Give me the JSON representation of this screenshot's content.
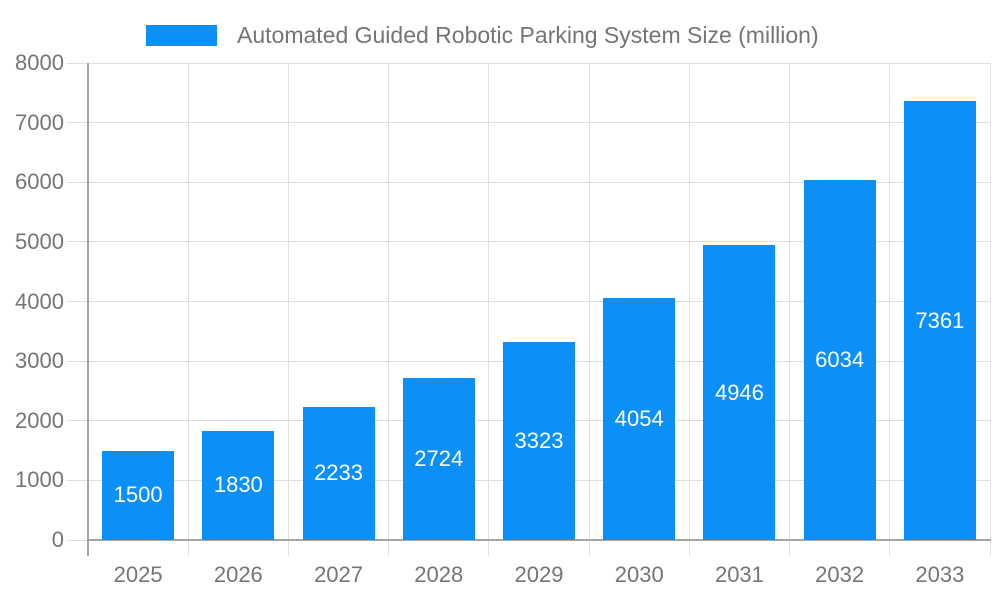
{
  "chart_data": {
    "type": "bar",
    "title": "Automated Guided Robotic Parking System Size (million)",
    "series_name": "Automated Guided Robotic Parking System Size (million)",
    "categories": [
      "2025",
      "2026",
      "2027",
      "2028",
      "2029",
      "2030",
      "2031",
      "2032",
      "2033"
    ],
    "values": [
      1500,
      1830,
      2233,
      2724,
      3323,
      4054,
      4946,
      6034,
      7361
    ],
    "xlabel": "",
    "ylabel": "",
    "ylim": [
      0,
      8000
    ],
    "yticks": [
      0,
      1000,
      2000,
      3000,
      4000,
      5000,
      6000,
      7000,
      8000
    ],
    "grid": true,
    "legend_position": "top",
    "value_label_position": "inside-center",
    "colors": {
      "bar": "#0b90f9",
      "value_label": "#ffffff",
      "axis_text": "#757575",
      "gridline": "#e0e0e0",
      "axis_line": "#a6a6a6",
      "background": "#ffffff"
    }
  }
}
